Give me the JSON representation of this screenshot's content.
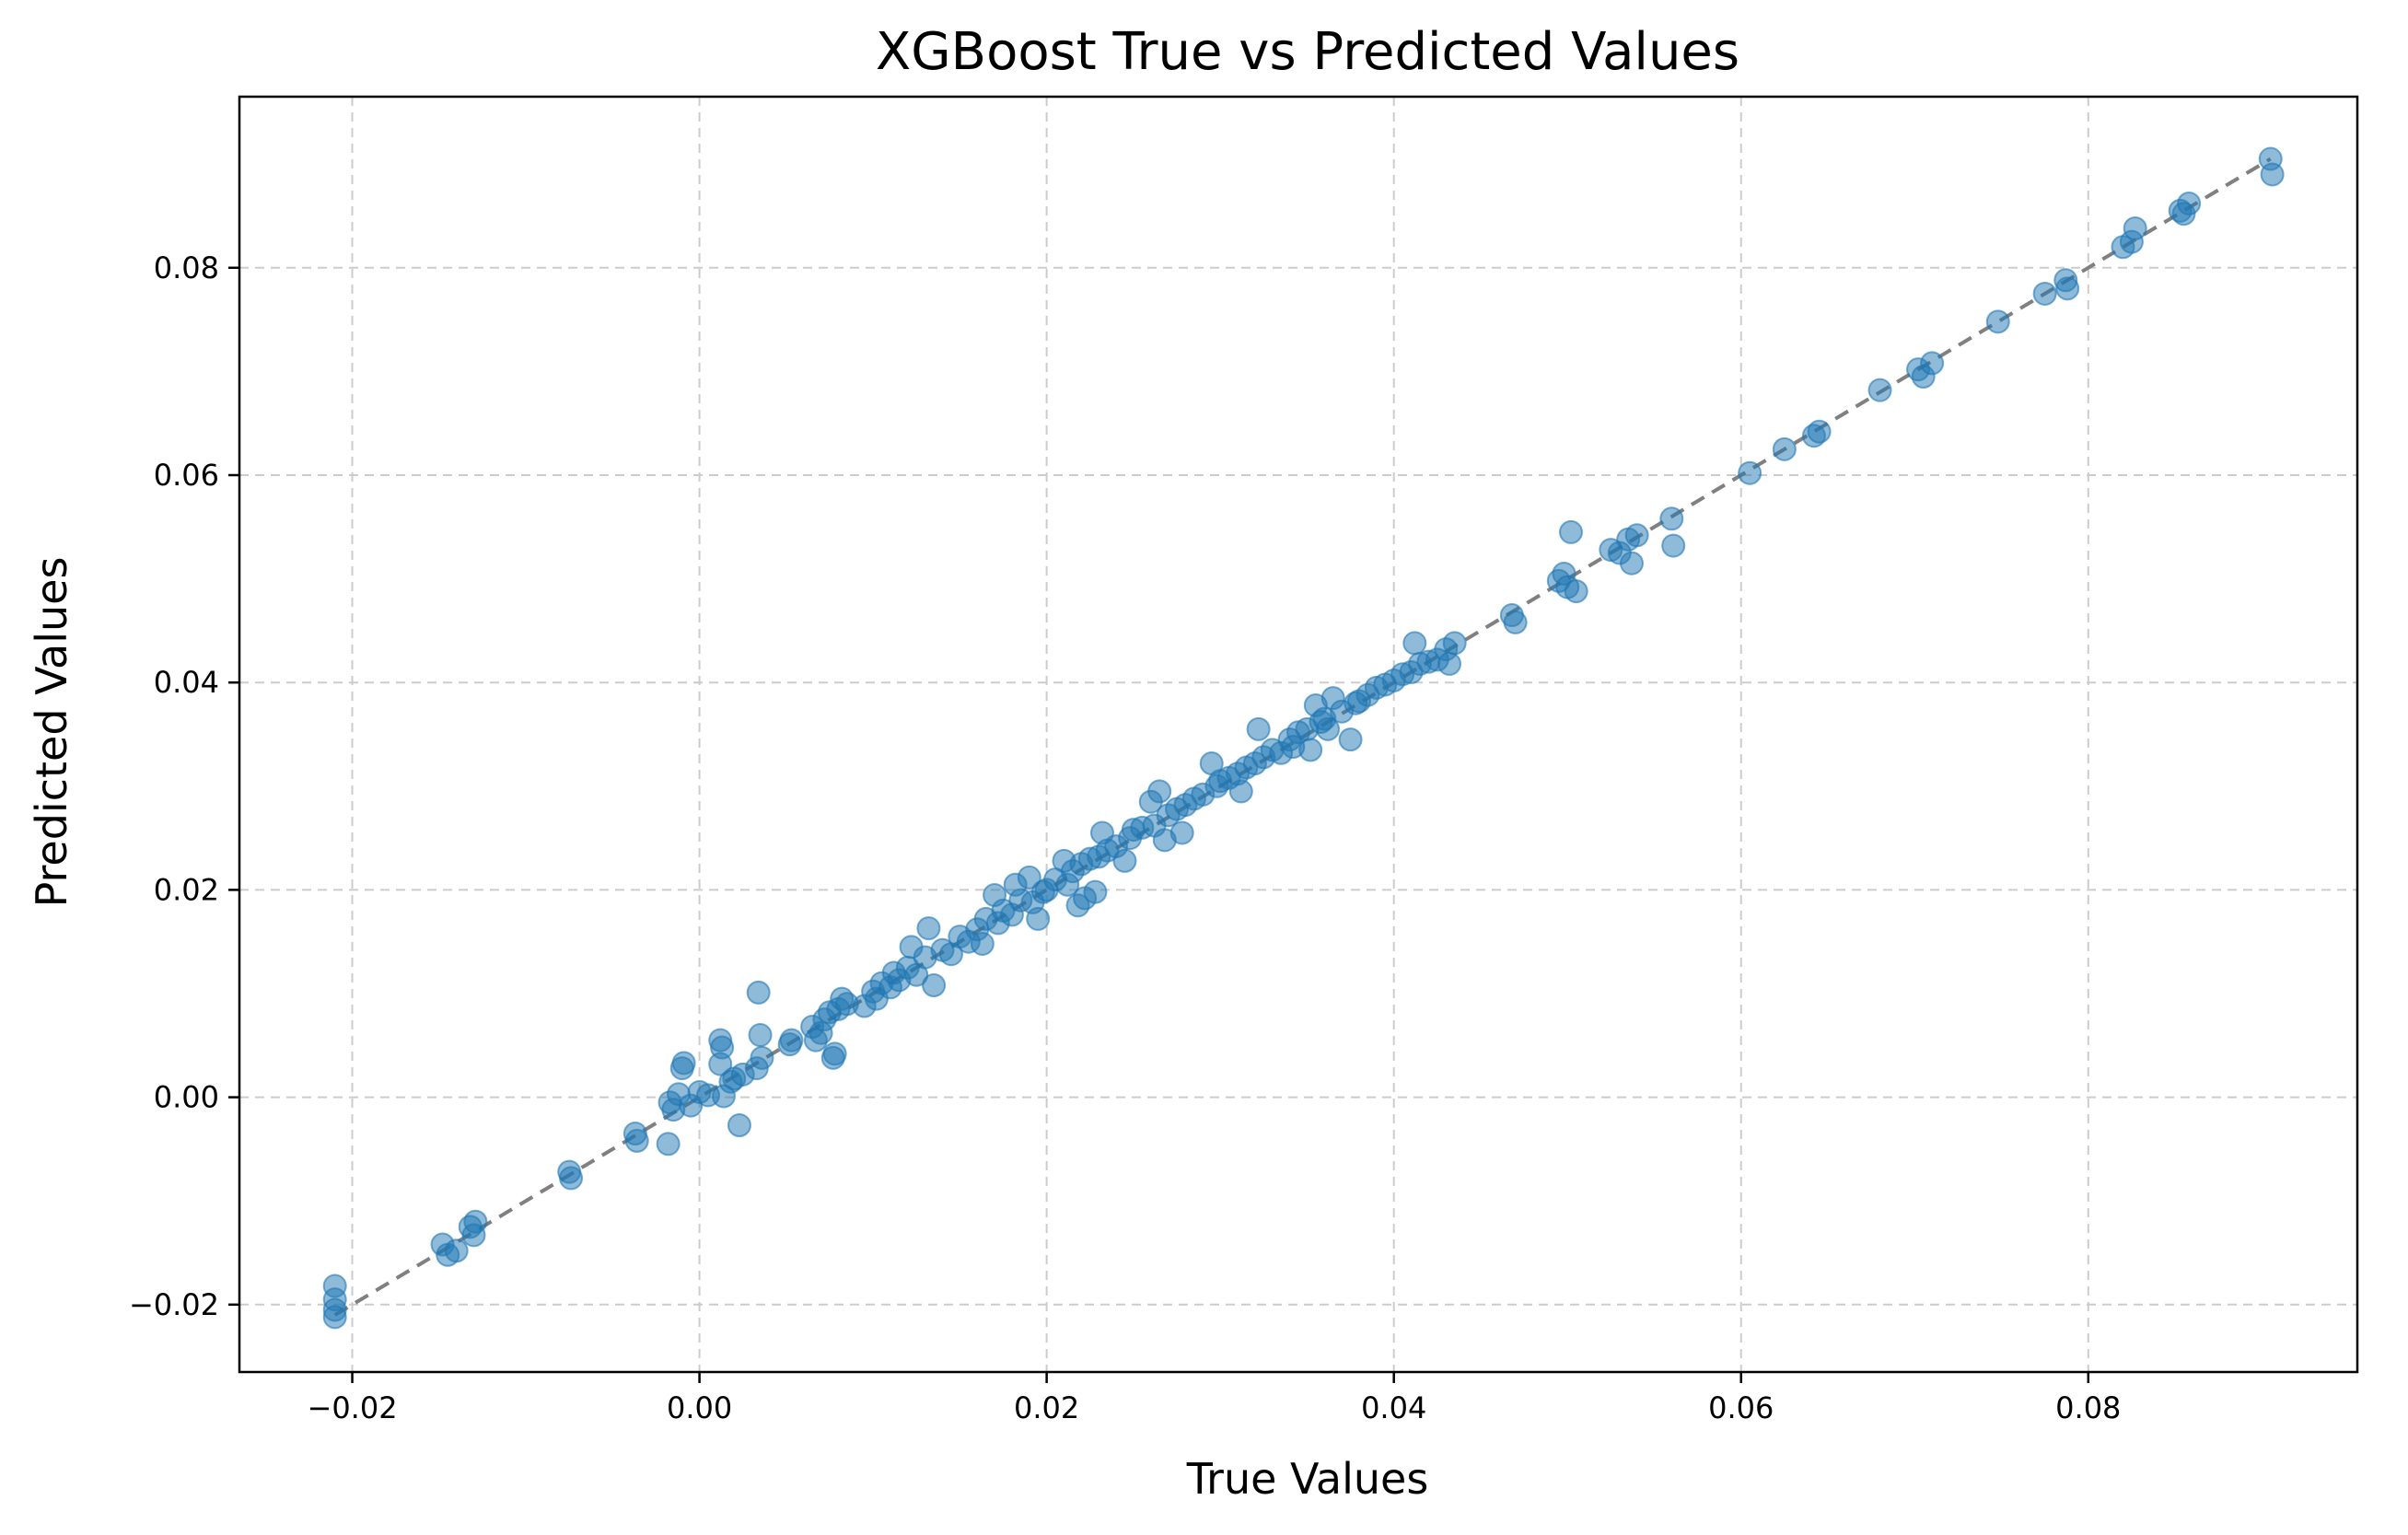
{
  "chart_data": {
    "type": "scatter",
    "title": "XGBoost True vs Predicted Values",
    "xlabel": "True Values",
    "ylabel": "Predicted Values",
    "xlim": [
      -0.0265,
      0.0955
    ],
    "ylim": [
      -0.0265,
      0.0965
    ],
    "xticks": [
      -0.02,
      0.0,
      0.02,
      0.04,
      0.06,
      0.08
    ],
    "xtick_labels": [
      "−0.02",
      "0.00",
      "0.02",
      "0.04",
      "0.06",
      "0.08"
    ],
    "yticks": [
      -0.02,
      0.0,
      0.02,
      0.04,
      0.06,
      0.08
    ],
    "ytick_labels": [
      "−0.02",
      "0.00",
      "0.02",
      "0.04",
      "0.06",
      "0.08"
    ],
    "grid": true,
    "colors": {
      "points": "#1f77b4",
      "reference_line": "#808080",
      "grid": "#cccccc"
    },
    "point_alpha": 0.5,
    "reference_line": {
      "style": "dashed",
      "from": [
        -0.021,
        -0.021
      ],
      "to": [
        0.0905,
        0.0905
      ]
    },
    "points": [
      [
        -0.021,
        -0.0182
      ],
      [
        -0.021,
        -0.0195
      ],
      [
        -0.021,
        -0.0205
      ],
      [
        -0.021,
        -0.0212
      ],
      [
        -0.0148,
        -0.0142
      ],
      [
        -0.0145,
        -0.0152
      ],
      [
        -0.014,
        -0.0148
      ],
      [
        -0.0132,
        -0.0125
      ],
      [
        -0.013,
        -0.0133
      ],
      [
        -0.0129,
        -0.012
      ],
      [
        -0.0075,
        -0.0072
      ],
      [
        -0.0074,
        -0.0078
      ],
      [
        -0.0037,
        -0.0035
      ],
      [
        -0.0036,
        -0.0042
      ],
      [
        -0.0018,
        -0.0045
      ],
      [
        -0.0017,
        -0.0005
      ],
      [
        -0.0015,
        -0.0012
      ],
      [
        -0.0012,
        0.0003
      ],
      [
        -0.001,
        0.0028
      ],
      [
        -0.0009,
        0.0033
      ],
      [
        -0.0005,
        -0.0008
      ],
      [
        0.0,
        0.0005
      ],
      [
        0.0005,
        0.0002
      ],
      [
        0.0012,
        0.0055
      ],
      [
        0.0012,
        0.0032
      ],
      [
        0.0013,
        0.0048
      ],
      [
        0.0014,
        0.0001
      ],
      [
        0.0018,
        0.0015
      ],
      [
        0.002,
        0.0018
      ],
      [
        0.0023,
        -0.0027
      ],
      [
        0.0025,
        0.0022
      ],
      [
        0.0033,
        0.0028
      ],
      [
        0.0034,
        0.0101
      ],
      [
        0.0035,
        0.006
      ],
      [
        0.0036,
        0.0038
      ],
      [
        0.0052,
        0.0051
      ],
      [
        0.0053,
        0.0055
      ],
      [
        0.0065,
        0.0068
      ],
      [
        0.0067,
        0.0055
      ],
      [
        0.007,
        0.0062
      ],
      [
        0.0072,
        0.0075
      ],
      [
        0.0075,
        0.0082
      ],
      [
        0.0077,
        0.0038
      ],
      [
        0.0078,
        0.0042
      ],
      [
        0.008,
        0.0085
      ],
      [
        0.0082,
        0.0095
      ],
      [
        0.0085,
        0.009
      ],
      [
        0.0095,
        0.0088
      ],
      [
        0.01,
        0.0102
      ],
      [
        0.0102,
        0.0095
      ],
      [
        0.0105,
        0.011
      ],
      [
        0.011,
        0.0106
      ],
      [
        0.0112,
        0.012
      ],
      [
        0.0115,
        0.0113
      ],
      [
        0.012,
        0.0125
      ],
      [
        0.0122,
        0.0145
      ],
      [
        0.0125,
        0.0118
      ],
      [
        0.013,
        0.0135
      ],
      [
        0.0132,
        0.0163
      ],
      [
        0.0135,
        0.0108
      ],
      [
        0.014,
        0.0142
      ],
      [
        0.0145,
        0.0138
      ],
      [
        0.015,
        0.0155
      ],
      [
        0.0155,
        0.015
      ],
      [
        0.016,
        0.0162
      ],
      [
        0.0163,
        0.0148
      ],
      [
        0.0165,
        0.0172
      ],
      [
        0.017,
        0.0195
      ],
      [
        0.0172,
        0.0168
      ],
      [
        0.0175,
        0.018
      ],
      [
        0.018,
        0.0176
      ],
      [
        0.0182,
        0.0205
      ],
      [
        0.0185,
        0.019
      ],
      [
        0.019,
        0.0212
      ],
      [
        0.0192,
        0.0188
      ],
      [
        0.0195,
        0.0172
      ],
      [
        0.0198,
        0.0198
      ],
      [
        0.02,
        0.02
      ],
      [
        0.0205,
        0.021
      ],
      [
        0.021,
        0.0228
      ],
      [
        0.0212,
        0.0205
      ],
      [
        0.0215,
        0.0218
      ],
      [
        0.0218,
        0.0185
      ],
      [
        0.022,
        0.0225
      ],
      [
        0.0222,
        0.0192
      ],
      [
        0.0225,
        0.023
      ],
      [
        0.0228,
        0.0198
      ],
      [
        0.023,
        0.0232
      ],
      [
        0.0232,
        0.0255
      ],
      [
        0.0235,
        0.0238
      ],
      [
        0.024,
        0.0242
      ],
      [
        0.0245,
        0.0228
      ],
      [
        0.0248,
        0.025
      ],
      [
        0.025,
        0.0258
      ],
      [
        0.0255,
        0.026
      ],
      [
        0.026,
        0.0285
      ],
      [
        0.0262,
        0.0262
      ],
      [
        0.0265,
        0.0295
      ],
      [
        0.0268,
        0.0248
      ],
      [
        0.027,
        0.0272
      ],
      [
        0.0275,
        0.0278
      ],
      [
        0.0278,
        0.0255
      ],
      [
        0.028,
        0.0282
      ],
      [
        0.0285,
        0.0288
      ],
      [
        0.029,
        0.0292
      ],
      [
        0.0295,
        0.0322
      ],
      [
        0.0298,
        0.03
      ],
      [
        0.03,
        0.0305
      ],
      [
        0.0305,
        0.0308
      ],
      [
        0.031,
        0.0312
      ],
      [
        0.0312,
        0.0295
      ],
      [
        0.0315,
        0.0318
      ],
      [
        0.032,
        0.0322
      ],
      [
        0.0322,
        0.0355
      ],
      [
        0.0325,
        0.0328
      ],
      [
        0.033,
        0.0335
      ],
      [
        0.0335,
        0.0332
      ],
      [
        0.034,
        0.0345
      ],
      [
        0.0342,
        0.0338
      ],
      [
        0.0345,
        0.0352
      ],
      [
        0.035,
        0.0355
      ],
      [
        0.0352,
        0.0335
      ],
      [
        0.0355,
        0.0378
      ],
      [
        0.0358,
        0.0362
      ],
      [
        0.036,
        0.0365
      ],
      [
        0.0362,
        0.0355
      ],
      [
        0.0365,
        0.0385
      ],
      [
        0.037,
        0.0372
      ],
      [
        0.0375,
        0.0345
      ],
      [
        0.0378,
        0.038
      ],
      [
        0.038,
        0.0382
      ],
      [
        0.0385,
        0.0388
      ],
      [
        0.039,
        0.0395
      ],
      [
        0.0395,
        0.0398
      ],
      [
        0.04,
        0.0402
      ],
      [
        0.0405,
        0.0408
      ],
      [
        0.041,
        0.041
      ],
      [
        0.0412,
        0.0438
      ],
      [
        0.0415,
        0.0418
      ],
      [
        0.042,
        0.042
      ],
      [
        0.0425,
        0.0422
      ],
      [
        0.043,
        0.0432
      ],
      [
        0.0432,
        0.0418
      ],
      [
        0.0435,
        0.0438
      ],
      [
        0.0468,
        0.0465
      ],
      [
        0.047,
        0.0458
      ],
      [
        0.0495,
        0.0498
      ],
      [
        0.0498,
        0.0505
      ],
      [
        0.05,
        0.0492
      ],
      [
        0.0502,
        0.0545
      ],
      [
        0.0505,
        0.0488
      ],
      [
        0.0525,
        0.0528
      ],
      [
        0.053,
        0.0525
      ],
      [
        0.0535,
        0.0538
      ],
      [
        0.0537,
        0.0515
      ],
      [
        0.054,
        0.0542
      ],
      [
        0.056,
        0.0558
      ],
      [
        0.0561,
        0.0532
      ],
      [
        0.0605,
        0.0602
      ],
      [
        0.0625,
        0.0625
      ],
      [
        0.0642,
        0.0638
      ],
      [
        0.0645,
        0.0642
      ],
      [
        0.068,
        0.0682
      ],
      [
        0.0702,
        0.0702
      ],
      [
        0.0705,
        0.0695
      ],
      [
        0.071,
        0.0708
      ],
      [
        0.0748,
        0.0748
      ],
      [
        0.0775,
        0.0775
      ],
      [
        0.0787,
        0.0788
      ],
      [
        0.0788,
        0.078
      ],
      [
        0.082,
        0.082
      ],
      [
        0.0825,
        0.0825
      ],
      [
        0.0827,
        0.0838
      ],
      [
        0.0853,
        0.0855
      ],
      [
        0.0855,
        0.0852
      ],
      [
        0.0858,
        0.0862
      ],
      [
        0.0905,
        0.0905
      ],
      [
        0.0906,
        0.089
      ]
    ]
  }
}
